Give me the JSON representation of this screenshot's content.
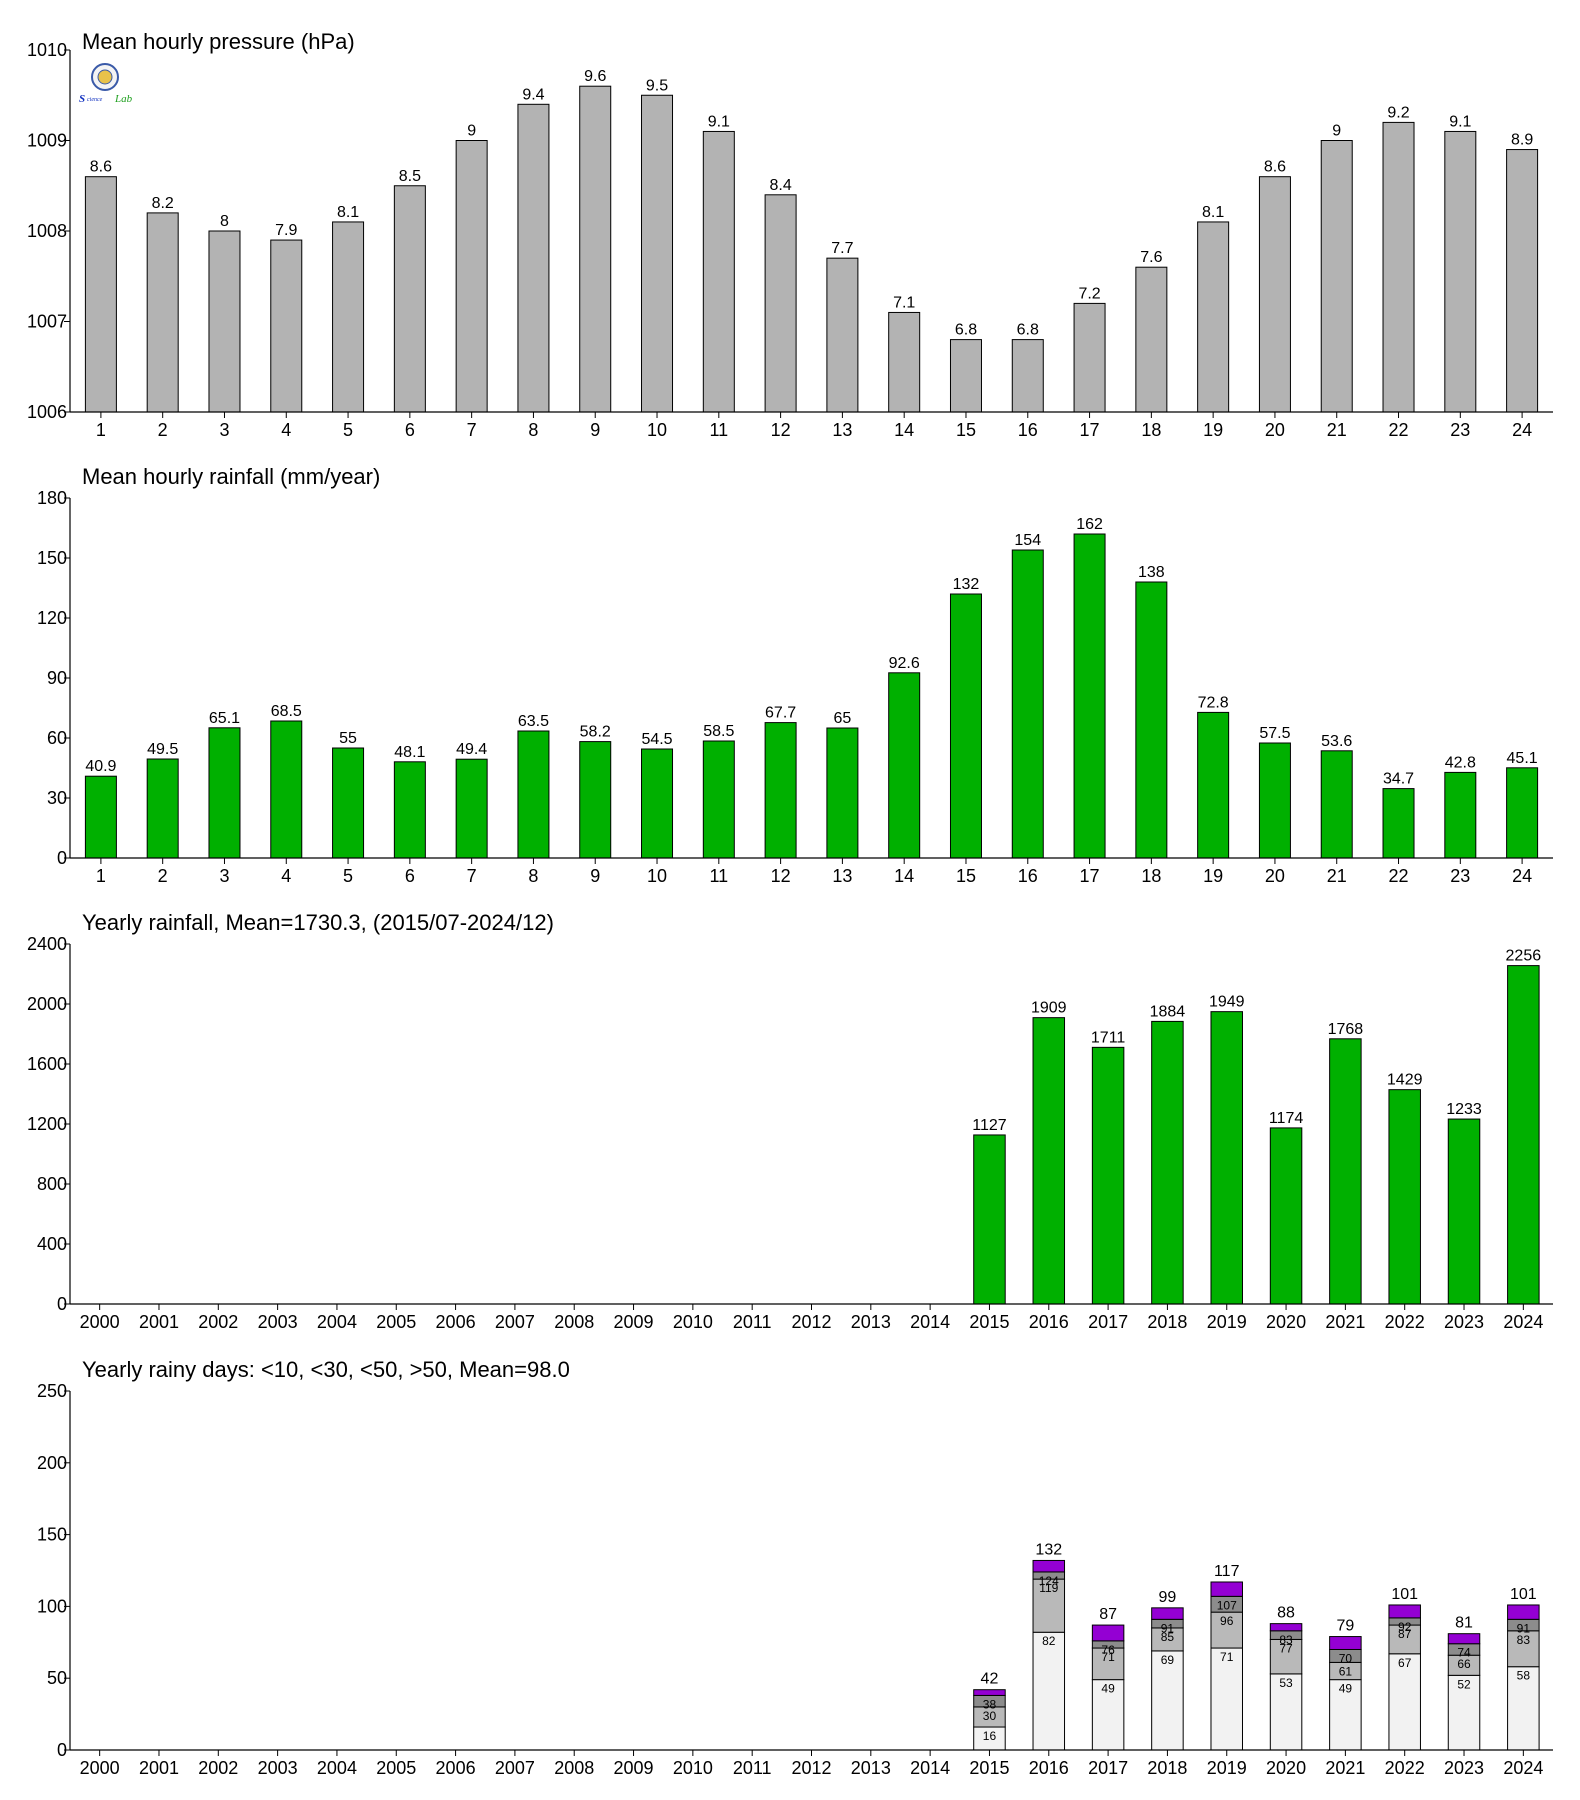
{
  "colors": {
    "pressure_bar": "#b3b3b3",
    "rain_bar": "#00b000",
    "days_lt10": "#f2f2f2",
    "days_lt30": "#b9b9b9",
    "days_lt50": "#8c8c8c",
    "days_gt50": "#9400d3"
  },
  "logo": {
    "text": "Lab",
    "icon": "lab-logo-icon"
  },
  "chart_data": [
    {
      "type": "bar",
      "title": "Mean hourly pressure (hPa)",
      "categories": [
        "1",
        "2",
        "3",
        "4",
        "5",
        "6",
        "7",
        "8",
        "9",
        "10",
        "11",
        "12",
        "13",
        "14",
        "15",
        "16",
        "17",
        "18",
        "19",
        "20",
        "21",
        "22",
        "23",
        "24"
      ],
      "values": [
        1008.6,
        1008.2,
        1008.0,
        1007.9,
        1008.1,
        1008.5,
        1009.0,
        1009.4,
        1009.6,
        1009.5,
        1009.1,
        1008.4,
        1007.7,
        1007.1,
        1006.8,
        1006.8,
        1007.2,
        1007.6,
        1008.1,
        1008.6,
        1009.0,
        1009.2,
        1009.1,
        1008.9
      ],
      "labels": [
        "8.6",
        "8.2",
        "8",
        "7.9",
        "8.1",
        "8.5",
        "9",
        "9.4",
        "9.6",
        "9.5",
        "9.1",
        "8.4",
        "7.7",
        "7.1",
        "6.8",
        "6.8",
        "7.2",
        "7.6",
        "8.1",
        "8.6",
        "9",
        "9.2",
        "9.1",
        "8.9"
      ],
      "ylim": [
        1006,
        1010
      ],
      "yticks": [
        "1006",
        "1007",
        "1008",
        "1009",
        "1010"
      ],
      "color": "#b3b3b3"
    },
    {
      "type": "bar",
      "title": "Mean hourly rainfall (mm/year)",
      "categories": [
        "1",
        "2",
        "3",
        "4",
        "5",
        "6",
        "7",
        "8",
        "9",
        "10",
        "11",
        "12",
        "13",
        "14",
        "15",
        "16",
        "17",
        "18",
        "19",
        "20",
        "21",
        "22",
        "23",
        "24"
      ],
      "values": [
        40.9,
        49.5,
        65.1,
        68.5,
        55,
        48.1,
        49.4,
        63.5,
        58.2,
        54.5,
        58.5,
        67.7,
        65,
        92.6,
        132,
        154,
        162,
        138,
        72.8,
        57.5,
        53.6,
        34.7,
        42.8,
        45.1
      ],
      "labels": [
        "40.9",
        "49.5",
        "65.1",
        "68.5",
        "55",
        "48.1",
        "49.4",
        "63.5",
        "58.2",
        "54.5",
        "58.5",
        "67.7",
        "65",
        "92.6",
        "132",
        "154",
        "162",
        "138",
        "72.8",
        "57.5",
        "53.6",
        "34.7",
        "42.8",
        "45.1"
      ],
      "ylim": [
        0,
        180
      ],
      "yticks": [
        "0",
        "30",
        "60",
        "90",
        "120",
        "150",
        "180"
      ],
      "color": "#00b000"
    },
    {
      "type": "bar",
      "title": "Yearly rainfall, Mean=1730.3, (2015/07-2024/12)",
      "categories": [
        "2000",
        "2001",
        "2002",
        "2003",
        "2004",
        "2005",
        "2006",
        "2007",
        "2008",
        "2009",
        "2010",
        "2011",
        "2012",
        "2013",
        "2014",
        "2015",
        "2016",
        "2017",
        "2018",
        "2019",
        "2020",
        "2021",
        "2022",
        "2023",
        "2024"
      ],
      "values": [
        null,
        null,
        null,
        null,
        null,
        null,
        null,
        null,
        null,
        null,
        null,
        null,
        null,
        null,
        null,
        1127,
        1909,
        1711,
        1884,
        1949,
        1174,
        1768,
        1429,
        1233,
        2256
      ],
      "labels": [
        "",
        "",
        "",
        "",
        "",
        "",
        "",
        "",
        "",
        "",
        "",
        "",
        "",
        "",
        "",
        "1127",
        "1909",
        "1711",
        "1884",
        "1949",
        "1174",
        "1768",
        "1429",
        "1233",
        "2256"
      ],
      "ylim": [
        0,
        2400
      ],
      "yticks": [
        "0",
        "400",
        "800",
        "1200",
        "1600",
        "2000",
        "2400"
      ],
      "color": "#00b000"
    },
    {
      "type": "bar",
      "stacked": true,
      "title": "Yearly rainy days: <10, <30, <50, >50, Mean=98.0",
      "categories": [
        "2000",
        "2001",
        "2002",
        "2003",
        "2004",
        "2005",
        "2006",
        "2007",
        "2008",
        "2009",
        "2010",
        "2011",
        "2012",
        "2013",
        "2014",
        "2015",
        "2016",
        "2017",
        "2018",
        "2019",
        "2020",
        "2021",
        "2022",
        "2023",
        "2024"
      ],
      "cumulative": {
        "lt10": [
          null,
          null,
          null,
          null,
          null,
          null,
          null,
          null,
          null,
          null,
          null,
          null,
          null,
          null,
          null,
          16,
          82,
          49,
          69,
          71,
          53,
          49,
          67,
          52,
          58
        ],
        "lt30": [
          null,
          null,
          null,
          null,
          null,
          null,
          null,
          null,
          null,
          null,
          null,
          null,
          null,
          null,
          null,
          30,
          119,
          71,
          85,
          96,
          77,
          61,
          87,
          66,
          83
        ],
        "lt50": [
          null,
          null,
          null,
          null,
          null,
          null,
          null,
          null,
          null,
          null,
          null,
          null,
          null,
          null,
          null,
          38,
          124,
          76,
          91,
          107,
          83,
          70,
          92,
          74,
          91
        ],
        "total": [
          null,
          null,
          null,
          null,
          null,
          null,
          null,
          null,
          null,
          null,
          null,
          null,
          null,
          null,
          null,
          42,
          132,
          87,
          99,
          117,
          88,
          79,
          101,
          81,
          101
        ]
      },
      "ylim": [
        0,
        250
      ],
      "yticks": [
        "0",
        "50",
        "100",
        "150",
        "200",
        "250"
      ]
    }
  ]
}
